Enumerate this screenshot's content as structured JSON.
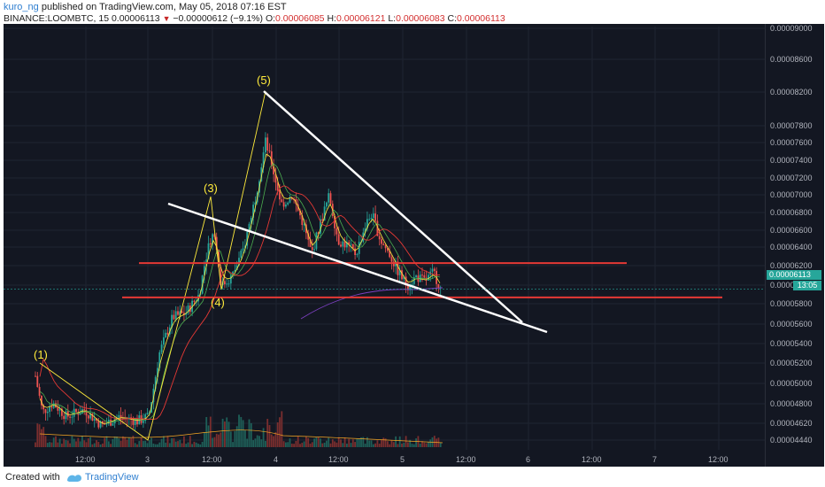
{
  "header": {
    "author": "kuro_ng",
    "published_text": "published on TradingView.com, May 05, 2018 07:16 EST",
    "symbol": "BINANCE:LOOMBTC, 15",
    "last_price": "0.00006113",
    "change": "−0.00000612 (−9.1%)",
    "ohlc": {
      "o_label": "O:",
      "o": "0.00006085",
      "h_label": "H:",
      "h": "0.00006121",
      "l_label": "L:",
      "l": "0.00006083",
      "c_label": "C:",
      "c": "0.00006113"
    }
  },
  "colors": {
    "background": "#131722",
    "up_candle": "#26a69a",
    "down_candle": "#ef5350",
    "trendline_white": "#ffffff",
    "support_red": "#e53935",
    "wave_yellow": "#ffeb3b",
    "price_tag": "#27a69a"
  },
  "chart_data": {
    "type": "candlestick",
    "y_axis": {
      "ticks": [
        "0.00009000",
        "0.00008600",
        "0.00008200",
        "0.00007800",
        "0.00007600",
        "0.00007400",
        "0.00007200",
        "0.00007000",
        "0.00006800",
        "0.00006600",
        "0.00006400",
        "0.00006200",
        "0.00006000",
        "0.00005800",
        "0.00005600",
        "0.00005400",
        "0.00005200",
        "0.00005000",
        "0.00004800",
        "0.00004620",
        "0.00004440"
      ],
      "current_price": "0.00006113",
      "countdown": "13:05"
    },
    "x_axis": {
      "ticks": [
        "12:00",
        "3",
        "12:00",
        "4",
        "12:00",
        "5",
        "12:00",
        "6",
        "12:00",
        "7",
        "12:00"
      ]
    },
    "elliott_wave_labels": [
      "(1)",
      "(3)",
      "(4)",
      "(5)"
    ],
    "horizontal_levels": [
      6.4e-05,
      6.02e-05
    ],
    "falling_wedge": true
  },
  "footer": {
    "created_with": "Created with",
    "brand": "TradingView"
  }
}
